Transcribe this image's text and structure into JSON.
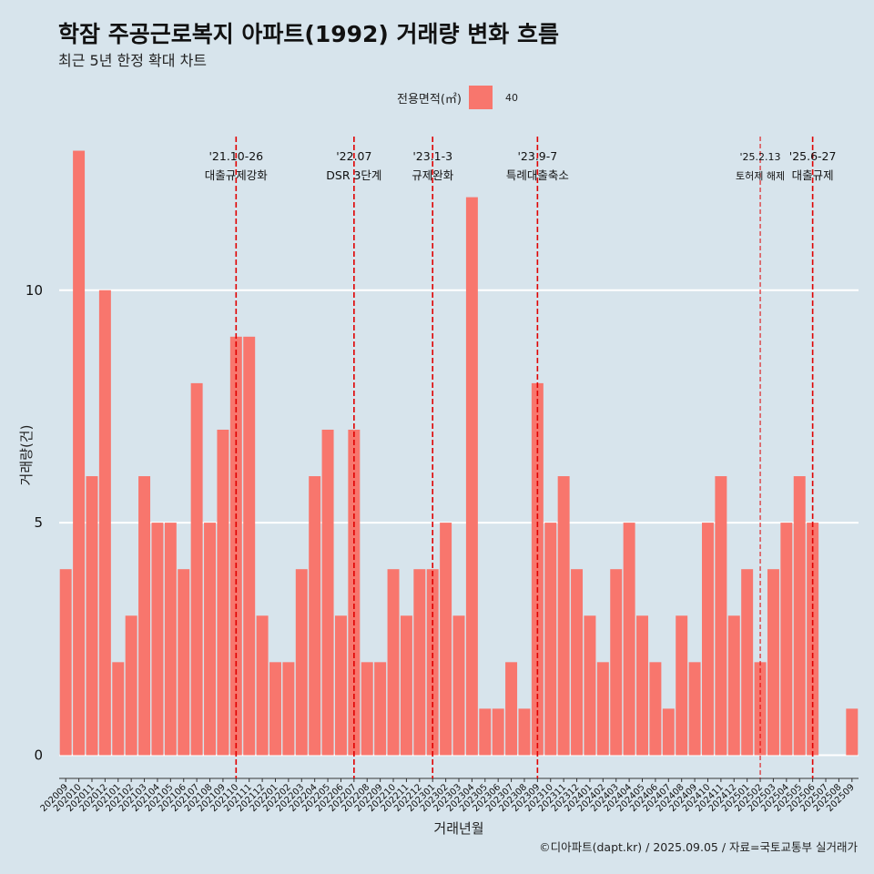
{
  "title": "학잠 주공근로복지 아파트(1992) 거래량 변화 흐름",
  "subtitle": "최근 5년 한정 확대 차트",
  "legend": {
    "title": "전용면적(㎡)",
    "entries": [
      {
        "label": "40",
        "color": "#f8766d"
      }
    ]
  },
  "caption": "©디아파트(dapt.kr) / 2025.09.05 / 자료=국토교통부 실거래가",
  "chart_data": {
    "type": "bar",
    "xlabel": "거래년월",
    "ylabel": "거래량(건)",
    "ylim": [
      -0.5,
      13.5
    ],
    "yticks": [
      0,
      5,
      10
    ],
    "grid": "horizontal major lines, white",
    "legend_position": "top",
    "bar_color": "#f8766d",
    "categories": [
      "202009",
      "202010",
      "202011",
      "202012",
      "202101",
      "202102",
      "202103",
      "202104",
      "202105",
      "202106",
      "202107",
      "202108",
      "202109",
      "202110",
      "202111",
      "202112",
      "202201",
      "202202",
      "202203",
      "202204",
      "202205",
      "202206",
      "202207",
      "202208",
      "202209",
      "202210",
      "202211",
      "202212",
      "202301",
      "202302",
      "202303",
      "202304",
      "202305",
      "202306",
      "202307",
      "202308",
      "202309",
      "202310",
      "202311",
      "202312",
      "202401",
      "202402",
      "202403",
      "202404",
      "202405",
      "202406",
      "202407",
      "202408",
      "202409",
      "202410",
      "202411",
      "202412",
      "202501",
      "202502",
      "202503",
      "202504",
      "202505",
      "202506",
      "202507",
      "202508",
      "202509"
    ],
    "series": [
      {
        "name": "40",
        "values": [
          4,
          13,
          6,
          10,
          2,
          3,
          6,
          5,
          5,
          4,
          8,
          5,
          7,
          9,
          9,
          3,
          2,
          2,
          4,
          6,
          7,
          3,
          7,
          2,
          2,
          4,
          3,
          4,
          4,
          5,
          3,
          12,
          1,
          1,
          2,
          1,
          8,
          5,
          6,
          4,
          3,
          2,
          4,
          5,
          3,
          2,
          1,
          3,
          2,
          5,
          6,
          3,
          4,
          2,
          4,
          5,
          6,
          5,
          0,
          0,
          1
        ]
      }
    ],
    "annotations": [
      {
        "at": "202110",
        "date": "'21.10-26",
        "label": "대출규제강화",
        "style": "dashed-red",
        "size": "normal"
      },
      {
        "at": "202207",
        "date": "'22.07",
        "label": "DSR 3단계",
        "style": "dashed-red",
        "size": "normal"
      },
      {
        "at": "202301",
        "date": "'23.1-3",
        "label": "규제완화",
        "style": "dashed-red",
        "size": "normal"
      },
      {
        "at": "202309",
        "date": "'23.9-7",
        "label": "특례대출축소",
        "style": "dashed-red",
        "size": "normal"
      },
      {
        "at": "202502",
        "date": "'25.2.13",
        "label": "토허제 해제",
        "style": "thin-dashed-red",
        "size": "small"
      },
      {
        "at": "202506",
        "date": "'25.6-27",
        "label": "대출규제",
        "style": "dashed-red",
        "size": "normal"
      }
    ]
  }
}
